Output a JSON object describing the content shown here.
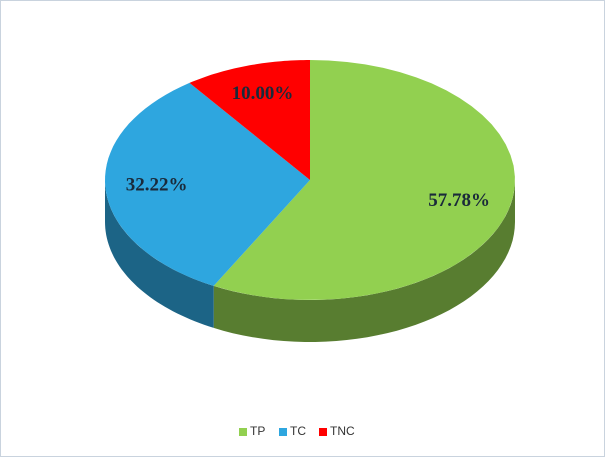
{
  "chart_data": {
    "type": "pie",
    "categories": [
      "TP",
      "TC",
      "TNC"
    ],
    "values": [
      57.78,
      32.22,
      10.0
    ],
    "value_labels": [
      "57.78%",
      "32.22%",
      "10.00%"
    ],
    "colors": [
      "#92d050",
      "#2ea6df",
      "#ff0000"
    ],
    "legend": "bottom"
  }
}
